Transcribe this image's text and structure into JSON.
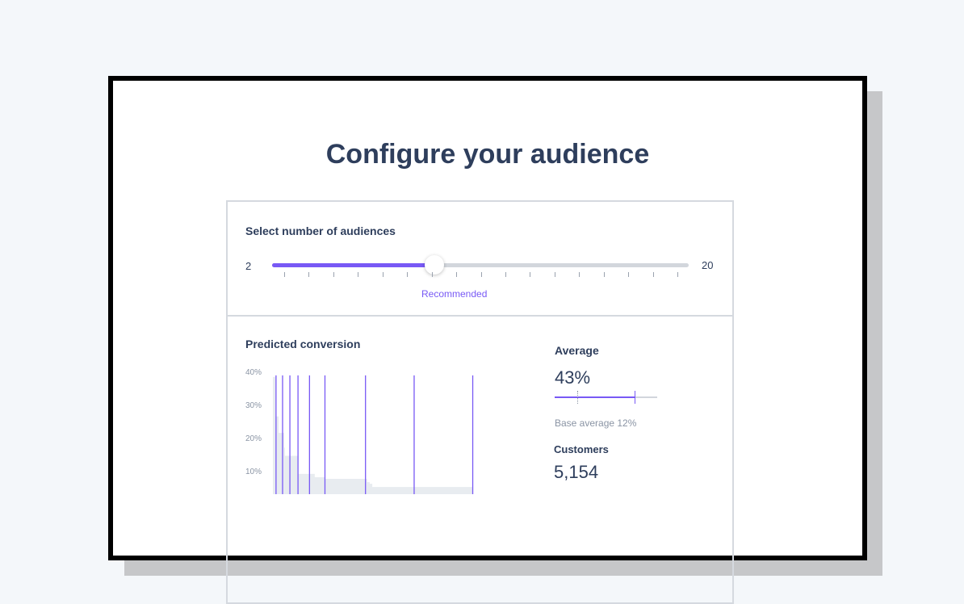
{
  "title": "Configure your audience",
  "audiences": {
    "heading": "Select number of audiences",
    "min_label": "2",
    "max_label": "20",
    "min": 2,
    "max": 20,
    "value": 9,
    "tick_count": 17,
    "recommended_label": "Recommended"
  },
  "conversion": {
    "heading": "Predicted conversion"
  },
  "average": {
    "heading": "Average",
    "value": "43%",
    "base_label": "Base average 12%",
    "value_pct": 43,
    "base_pct": 12,
    "scale_max_pct": 55
  },
  "customers": {
    "heading": "Customers",
    "value": "5,154"
  },
  "colors": {
    "accent": "#7859f5",
    "text": "#2e3e5c",
    "area": "#e8ecf0"
  },
  "chart_data": {
    "type": "area",
    "y_ticks": [
      "40%",
      "30%",
      "20%",
      "10%"
    ],
    "ylim": [
      0,
      42
    ],
    "xlim": [
      0,
      100
    ],
    "area": [
      [
        0,
        41
      ],
      [
        1,
        29
      ],
      [
        2.2,
        24
      ],
      [
        4.3,
        19.5
      ],
      [
        4.6,
        17
      ],
      [
        9.6,
        11.5
      ],
      [
        16,
        10.5
      ],
      [
        19.9,
        10
      ],
      [
        36,
        9
      ],
      [
        37,
        8.5
      ],
      [
        38,
        7.5
      ],
      [
        76.4,
        5
      ],
      [
        100,
        5
      ]
    ],
    "markers_x": [
      1.2,
      3.7,
      6.5,
      9.6,
      14,
      19.9,
      35.4,
      54,
      76.4
    ]
  }
}
